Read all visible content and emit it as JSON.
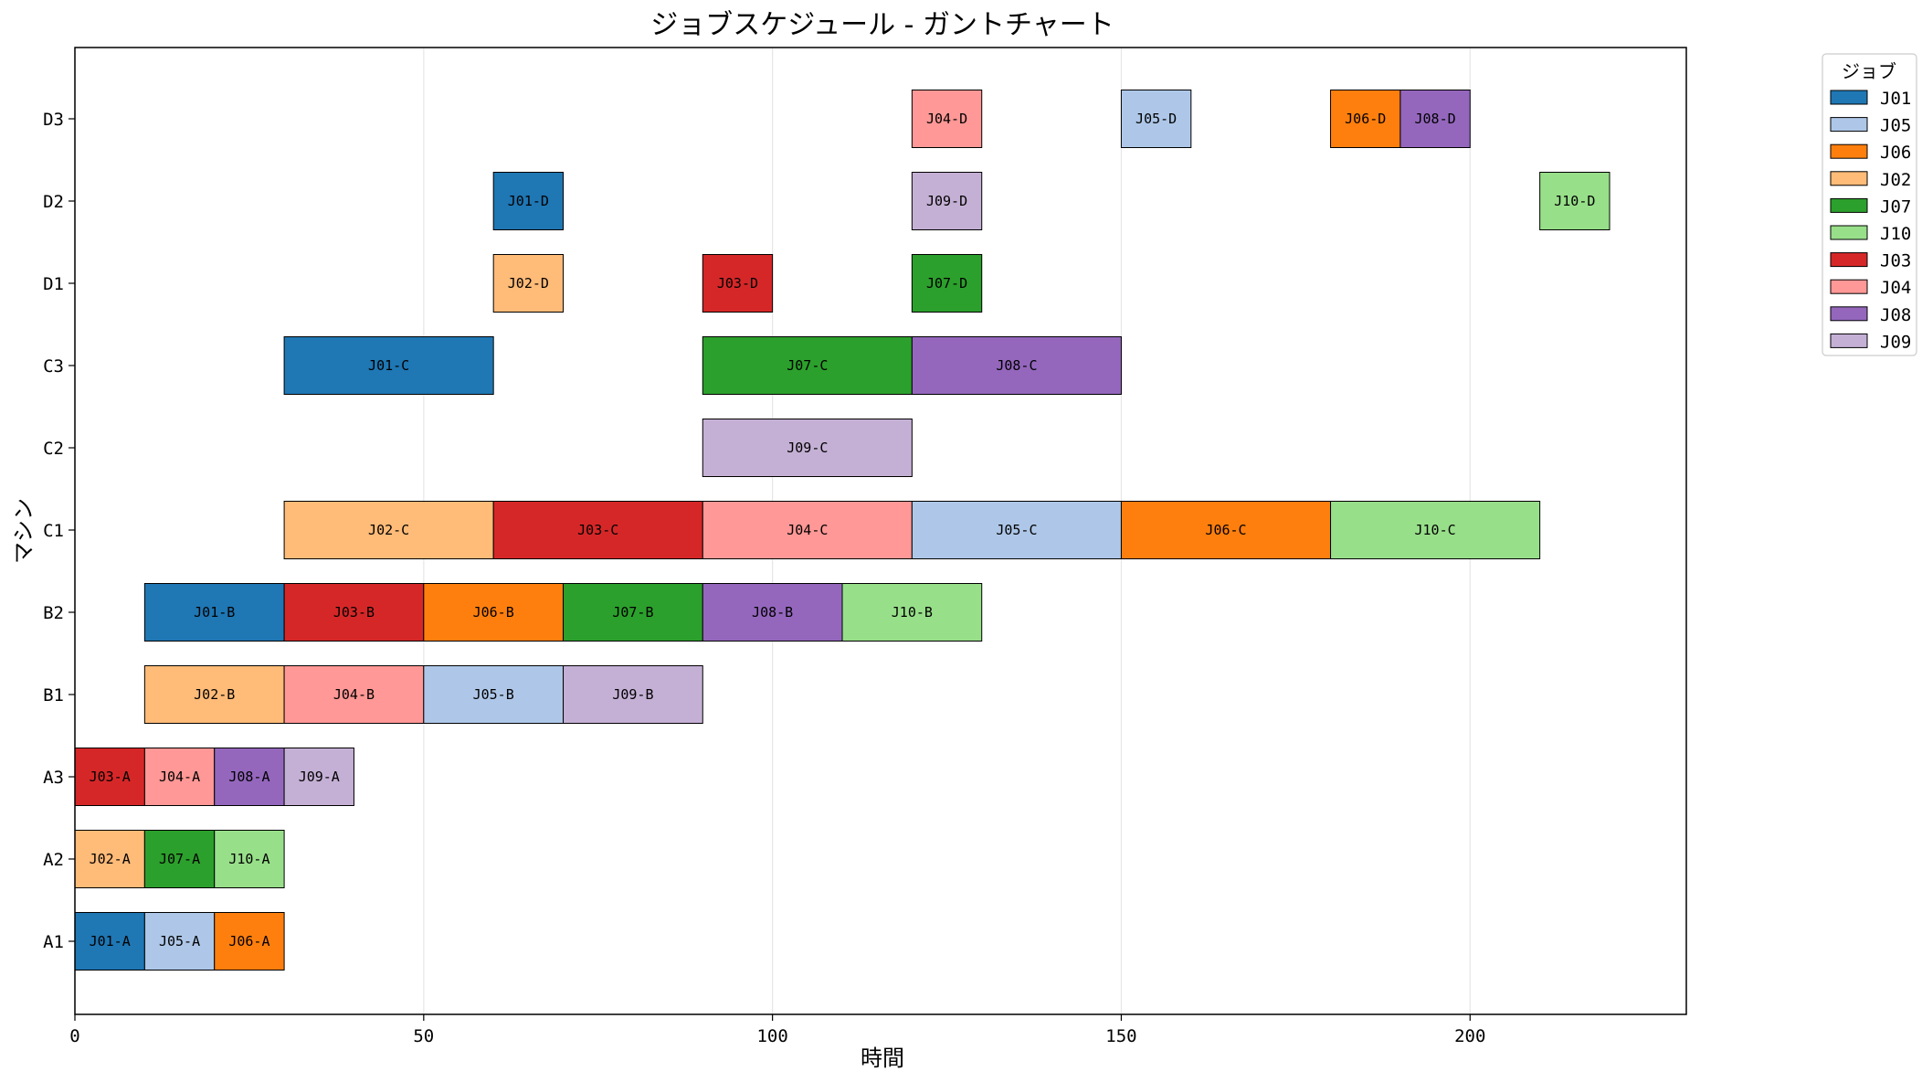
{
  "chart_data": {
    "type": "gantt",
    "title": "ジョブスケジュール - ガントチャート",
    "xlabel": "時間",
    "ylabel": "マシン",
    "xlim": [
      0,
      231
    ],
    "xticks": [
      0,
      50,
      100,
      150,
      200
    ],
    "machines": [
      "A1",
      "A2",
      "A3",
      "B1",
      "B2",
      "C1",
      "C2",
      "C3",
      "D1",
      "D2",
      "D3"
    ],
    "grid": "vertical",
    "legend": {
      "title": "ジョブ",
      "placement": "top-right-outside",
      "entries": [
        "J01",
        "J05",
        "J06",
        "J02",
        "J07",
        "J10",
        "J03",
        "J04",
        "J08",
        "J09"
      ]
    },
    "colors": {
      "J01": "#1f77b4",
      "J02": "#ffbb78",
      "J03": "#d62728",
      "J04": "#ff9896",
      "J05": "#aec7e8",
      "J06": "#ff7f0e",
      "J07": "#2ca02c",
      "J08": "#9467bd",
      "J09": "#c5b0d5",
      "J10": "#98df8a"
    },
    "tasks": [
      {
        "label": "J01-A",
        "job": "J01",
        "machine": "A1",
        "start": 0,
        "end": 10
      },
      {
        "label": "J05-A",
        "job": "J05",
        "machine": "A1",
        "start": 10,
        "end": 20
      },
      {
        "label": "J06-A",
        "job": "J06",
        "machine": "A1",
        "start": 20,
        "end": 30
      },
      {
        "label": "J02-A",
        "job": "J02",
        "machine": "A2",
        "start": 0,
        "end": 10
      },
      {
        "label": "J07-A",
        "job": "J07",
        "machine": "A2",
        "start": 10,
        "end": 20
      },
      {
        "label": "J10-A",
        "job": "J10",
        "machine": "A2",
        "start": 20,
        "end": 30
      },
      {
        "label": "J03-A",
        "job": "J03",
        "machine": "A3",
        "start": 0,
        "end": 10
      },
      {
        "label": "J04-A",
        "job": "J04",
        "machine": "A3",
        "start": 10,
        "end": 20
      },
      {
        "label": "J08-A",
        "job": "J08",
        "machine": "A3",
        "start": 20,
        "end": 30
      },
      {
        "label": "J09-A",
        "job": "J09",
        "machine": "A3",
        "start": 30,
        "end": 40
      },
      {
        "label": "J02-B",
        "job": "J02",
        "machine": "B1",
        "start": 10,
        "end": 30
      },
      {
        "label": "J04-B",
        "job": "J04",
        "machine": "B1",
        "start": 30,
        "end": 50
      },
      {
        "label": "J05-B",
        "job": "J05",
        "machine": "B1",
        "start": 50,
        "end": 70
      },
      {
        "label": "J09-B",
        "job": "J09",
        "machine": "B1",
        "start": 70,
        "end": 90
      },
      {
        "label": "J01-B",
        "job": "J01",
        "machine": "B2",
        "start": 10,
        "end": 30
      },
      {
        "label": "J03-B",
        "job": "J03",
        "machine": "B2",
        "start": 30,
        "end": 50
      },
      {
        "label": "J06-B",
        "job": "J06",
        "machine": "B2",
        "start": 50,
        "end": 70
      },
      {
        "label": "J07-B",
        "job": "J07",
        "machine": "B2",
        "start": 70,
        "end": 90
      },
      {
        "label": "J08-B",
        "job": "J08",
        "machine": "B2",
        "start": 90,
        "end": 110
      },
      {
        "label": "J10-B",
        "job": "J10",
        "machine": "B2",
        "start": 110,
        "end": 130
      },
      {
        "label": "J02-C",
        "job": "J02",
        "machine": "C1",
        "start": 30,
        "end": 60
      },
      {
        "label": "J03-C",
        "job": "J03",
        "machine": "C1",
        "start": 60,
        "end": 90
      },
      {
        "label": "J04-C",
        "job": "J04",
        "machine": "C1",
        "start": 90,
        "end": 120
      },
      {
        "label": "J05-C",
        "job": "J05",
        "machine": "C1",
        "start": 120,
        "end": 150
      },
      {
        "label": "J06-C",
        "job": "J06",
        "machine": "C1",
        "start": 150,
        "end": 180
      },
      {
        "label": "J10-C",
        "job": "J10",
        "machine": "C1",
        "start": 180,
        "end": 210
      },
      {
        "label": "J09-C",
        "job": "J09",
        "machine": "C2",
        "start": 90,
        "end": 120
      },
      {
        "label": "J01-C",
        "job": "J01",
        "machine": "C3",
        "start": 30,
        "end": 60
      },
      {
        "label": "J07-C",
        "job": "J07",
        "machine": "C3",
        "start": 90,
        "end": 120
      },
      {
        "label": "J08-C",
        "job": "J08",
        "machine": "C3",
        "start": 120,
        "end": 150
      },
      {
        "label": "J02-D",
        "job": "J02",
        "machine": "D1",
        "start": 60,
        "end": 70
      },
      {
        "label": "J03-D",
        "job": "J03",
        "machine": "D1",
        "start": 90,
        "end": 100
      },
      {
        "label": "J07-D",
        "job": "J07",
        "machine": "D1",
        "start": 120,
        "end": 130
      },
      {
        "label": "J01-D",
        "job": "J01",
        "machine": "D2",
        "start": 60,
        "end": 70
      },
      {
        "label": "J09-D",
        "job": "J09",
        "machine": "D2",
        "start": 120,
        "end": 130
      },
      {
        "label": "J10-D",
        "job": "J10",
        "machine": "D2",
        "start": 210,
        "end": 220
      },
      {
        "label": "J04-D",
        "job": "J04",
        "machine": "D3",
        "start": 120,
        "end": 130
      },
      {
        "label": "J05-D",
        "job": "J05",
        "machine": "D3",
        "start": 150,
        "end": 160
      },
      {
        "label": "J06-D",
        "job": "J06",
        "machine": "D3",
        "start": 180,
        "end": 190
      },
      {
        "label": "J08-D",
        "job": "J08",
        "machine": "D3",
        "start": 190,
        "end": 200
      }
    ]
  }
}
